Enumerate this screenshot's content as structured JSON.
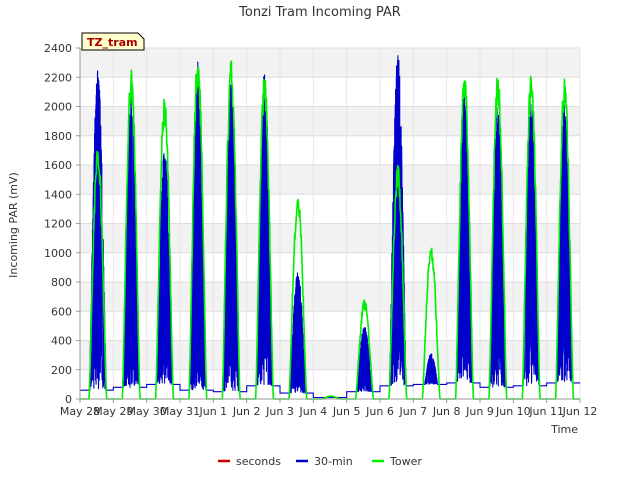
{
  "chart_data": {
    "type": "line",
    "title": "Tonzi Tram Incoming PAR",
    "xlabel": "Time",
    "ylabel": "Incoming PAR (mV)",
    "ylim": [
      0,
      2400
    ],
    "yticks": [
      0,
      200,
      400,
      600,
      800,
      1000,
      1200,
      1400,
      1600,
      1800,
      2000,
      2200,
      2400
    ],
    "xlim": [
      0,
      15
    ],
    "xticks": [
      {
        "v": 0,
        "label": "May 28"
      },
      {
        "v": 1,
        "label": "May 29"
      },
      {
        "v": 2,
        "label": "May 30"
      },
      {
        "v": 3,
        "label": "May 31"
      },
      {
        "v": 4,
        "label": "Jun 1"
      },
      {
        "v": 5,
        "label": "Jun 2"
      },
      {
        "v": 6,
        "label": "Jun 3"
      },
      {
        "v": 7,
        "label": "Jun 4"
      },
      {
        "v": 8,
        "label": "Jun 5"
      },
      {
        "v": 9,
        "label": "Jun 6"
      },
      {
        "v": 10,
        "label": "Jun 7"
      },
      {
        "v": 11,
        "label": "Jun 8"
      },
      {
        "v": 12,
        "label": "Jun 9"
      },
      {
        "v": 13,
        "label": "Jun 10"
      },
      {
        "v": 14,
        "label": "Jun 11"
      },
      {
        "v": 15,
        "label": "Jun 12"
      }
    ],
    "site_label": "TZ_tram",
    "series": [
      {
        "name": "seconds",
        "color": "#cc0000",
        "days": []
      },
      {
        "name": "30-min",
        "color": "#0000cc",
        "days": [
          {
            "day": 0,
            "peak": 2270,
            "night": 60
          },
          {
            "day": 1,
            "peak": 2090,
            "night": 80
          },
          {
            "day": 2,
            "peak": 1720,
            "night": 100
          },
          {
            "day": 3,
            "peak": 2310,
            "night": 60
          },
          {
            "day": 4,
            "peak": 2170,
            "night": 50
          },
          {
            "day": 5,
            "peak": 2240,
            "night": 90
          },
          {
            "day": 6,
            "peak": 870,
            "night": 40
          },
          {
            "day": 7,
            "peak": 20,
            "night": 10
          },
          {
            "day": 8,
            "peak": 500,
            "night": 50
          },
          {
            "day": 9,
            "peak": 2370,
            "night": 90
          },
          {
            "day": 10,
            "peak": 310,
            "night": 100
          },
          {
            "day": 11,
            "peak": 2100,
            "night": 110
          },
          {
            "day": 12,
            "peak": 2020,
            "night": 80
          },
          {
            "day": 13,
            "peak": 2050,
            "night": 90
          },
          {
            "day": 14,
            "peak": 2010,
            "night": 110
          }
        ]
      },
      {
        "name": "Tower",
        "color": "#00ee00",
        "days": [
          {
            "day": 0,
            "peak": 1740,
            "night": 0
          },
          {
            "day": 1,
            "peak": 2260,
            "night": 0
          },
          {
            "day": 2,
            "peak": 2080,
            "night": 0
          },
          {
            "day": 3,
            "peak": 2380,
            "night": 0
          },
          {
            "day": 4,
            "peak": 2330,
            "night": 0
          },
          {
            "day": 5,
            "peak": 2250,
            "night": 0
          },
          {
            "day": 6,
            "peak": 1420,
            "night": 0
          },
          {
            "day": 7,
            "peak": 20,
            "night": 0
          },
          {
            "day": 8,
            "peak": 680,
            "night": 0
          },
          {
            "day": 9,
            "peak": 1600,
            "night": 0
          },
          {
            "day": 10,
            "peak": 1060,
            "night": 0
          },
          {
            "day": 11,
            "peak": 2240,
            "night": 0
          },
          {
            "day": 12,
            "peak": 2240,
            "night": 0
          },
          {
            "day": 13,
            "peak": 2250,
            "night": 0
          },
          {
            "day": 14,
            "peak": 2210,
            "night": 0
          }
        ]
      }
    ]
  }
}
